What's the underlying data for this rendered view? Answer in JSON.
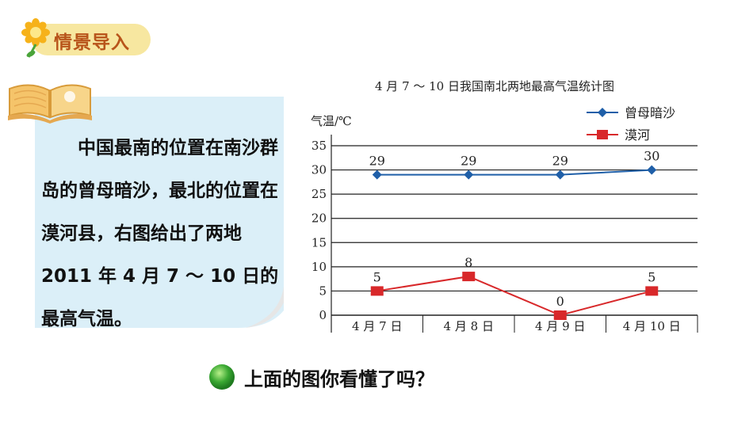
{
  "header": {
    "badge_label": "情景导入"
  },
  "card": {
    "text": "中国最南的位置在南沙群岛的曾母暗沙，最北的位置在漠河县，右图给出了两地 2011 年 4 月 7 ～ 10 日的最高气温。"
  },
  "question": {
    "text": "上面的图你看懂了吗？"
  },
  "chart_data": {
    "type": "line",
    "title": "4 月 7 ～ 10 日我国南北两地最高气温统计图",
    "ylabel": "气温/℃",
    "xlabel": "",
    "categories": [
      "4 月 7 日",
      "4 月 8 日",
      "4 月 9 日",
      "4 月 10 日"
    ],
    "ylim": [
      0,
      35
    ],
    "yticks": [
      "0",
      "5",
      "10",
      "15",
      "20",
      "25",
      "30",
      "35"
    ],
    "grid": true,
    "legend": "top-right",
    "series": [
      {
        "name": "曾母暗沙",
        "values": [
          29,
          29,
          29,
          30
        ],
        "labels": [
          "29",
          "29",
          "29",
          "30"
        ],
        "color": "#1f5fa8",
        "marker": "diamond"
      },
      {
        "name": "漠河",
        "values": [
          5,
          8,
          0,
          5
        ],
        "labels": [
          "5",
          "8",
          "0",
          "5"
        ],
        "color": "#d8282a",
        "marker": "square"
      }
    ]
  }
}
